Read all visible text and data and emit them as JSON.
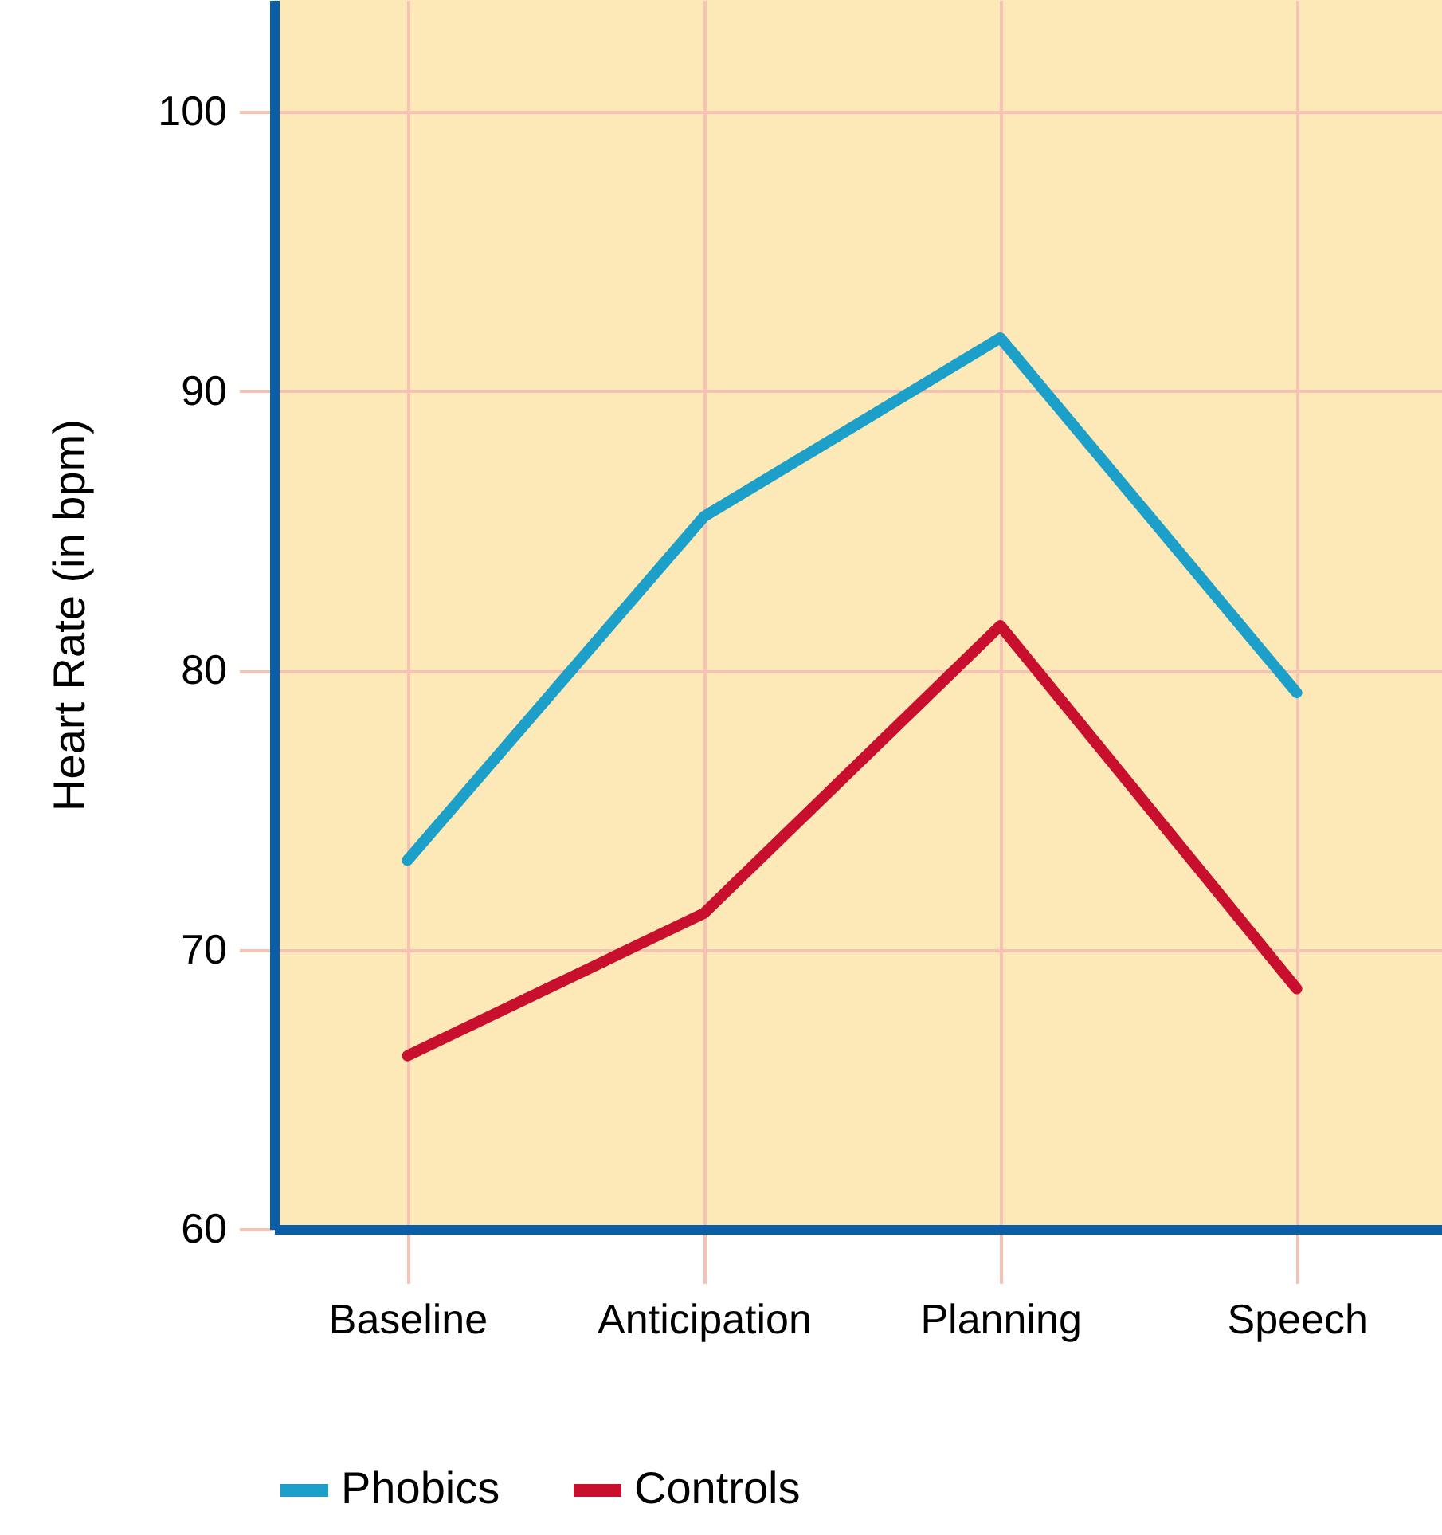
{
  "chart_data": {
    "type": "line",
    "ylabel": "Heart Rate (in bpm)",
    "categories": [
      "Baseline",
      "Anticipation",
      "Planning",
      "Speech"
    ],
    "series": [
      {
        "name": "Phobics",
        "color": "#1ca0c9",
        "values": [
          73.2,
          85.5,
          91.9,
          79.2
        ]
      },
      {
        "name": "Controls",
        "color": "#c8102e",
        "values": [
          66.2,
          71.3,
          81.6,
          68.6
        ]
      }
    ],
    "ylim": [
      60,
      104
    ],
    "yticks": [
      60,
      70,
      80,
      90,
      100
    ],
    "grid": true,
    "legend": "bottom",
    "marker": "none",
    "line_style": "solid"
  }
}
